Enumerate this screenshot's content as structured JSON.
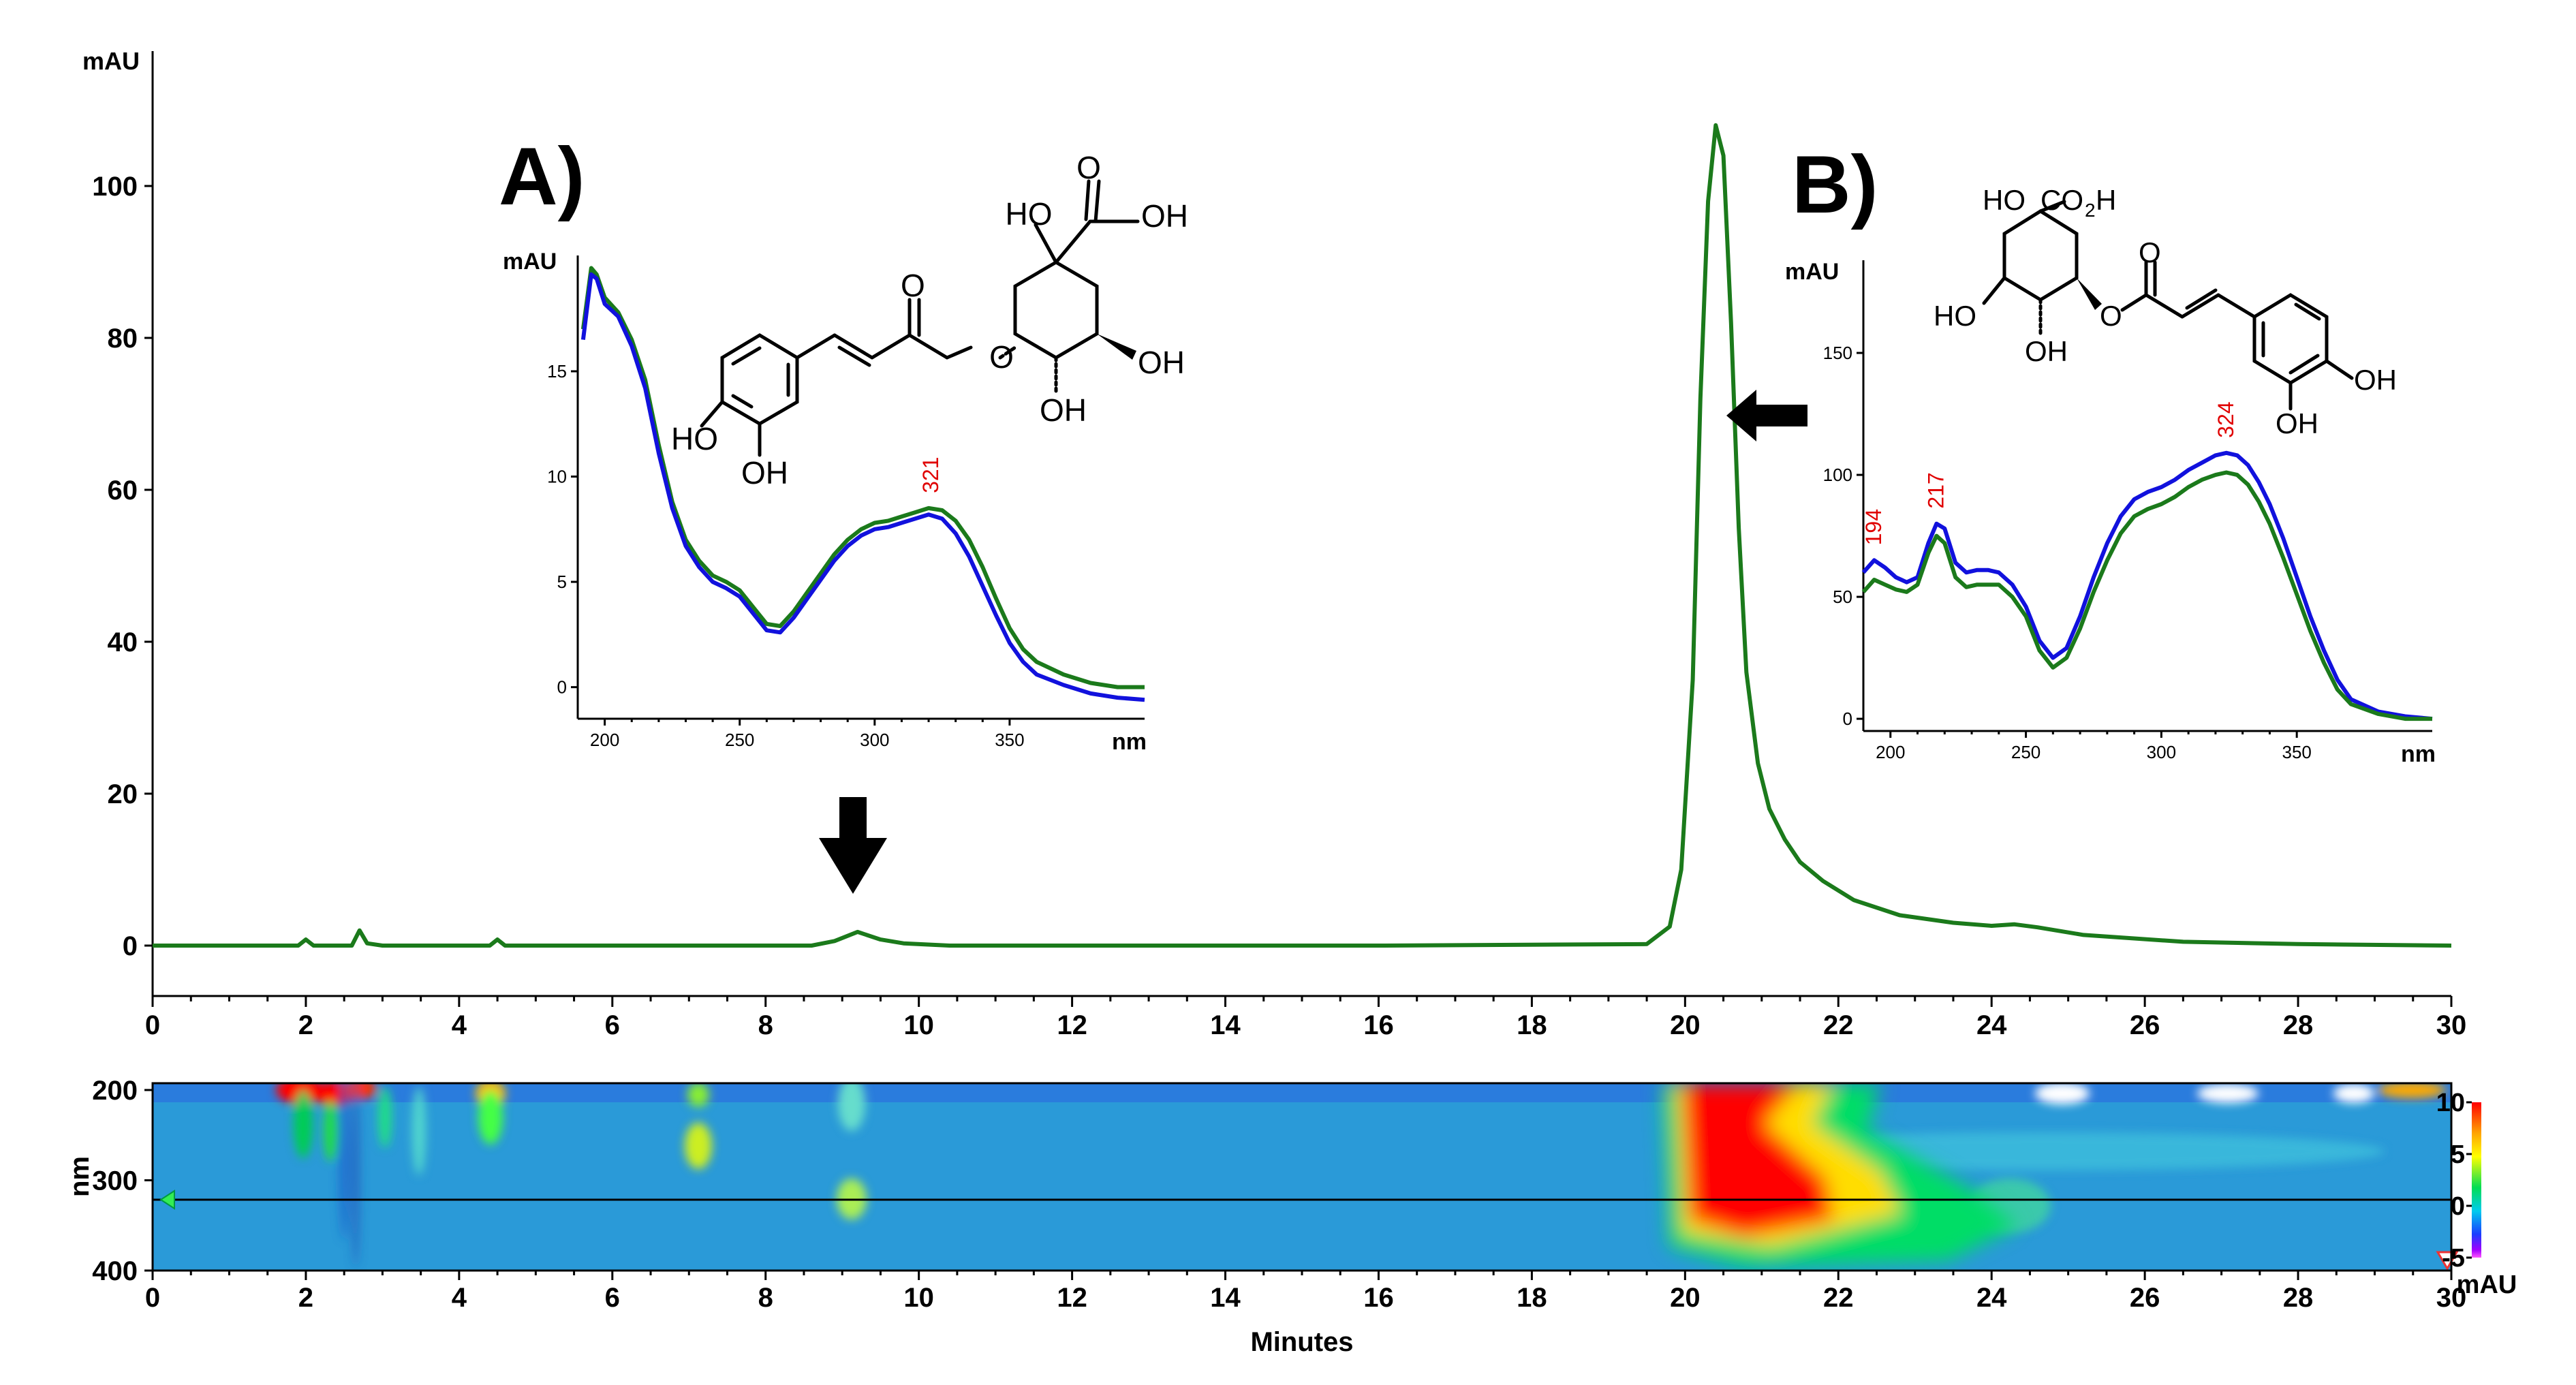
{
  "chart_data": [
    {
      "id": "chromatogram",
      "type": "line",
      "ylabel": "mAU",
      "xlabel": "",
      "xlim": [
        0,
        30
      ],
      "ylim": [
        -7,
        118
      ],
      "x_ticks": [
        "0",
        "2",
        "4",
        "6",
        "8",
        "10",
        "12",
        "14",
        "16",
        "18",
        "20",
        "22",
        "24",
        "26",
        "28",
        "30"
      ],
      "y_ticks": [
        "0",
        "20",
        "40",
        "60",
        "80",
        "100"
      ],
      "color": "#1b7a1b",
      "series": [
        {
          "name": "chromatogram",
          "x": [
            0,
            1.9,
            2.0,
            2.1,
            2.6,
            2.7,
            2.8,
            3.0,
            4.4,
            4.5,
            4.6,
            8.6,
            8.9,
            9.2,
            9.5,
            9.8,
            10.4,
            12,
            16,
            19.5,
            19.8,
            19.95,
            20.1,
            20.2,
            20.3,
            20.4,
            20.5,
            20.6,
            20.7,
            20.8,
            20.95,
            21.1,
            21.3,
            21.5,
            21.8,
            22.2,
            22.8,
            23.5,
            24.0,
            24.3,
            24.6,
            25.2,
            26.5,
            28,
            30
          ],
          "values": [
            0,
            0,
            0.8,
            0,
            0,
            2.0,
            0.3,
            0,
            0,
            0.8,
            0,
            0,
            0.6,
            1.8,
            0.8,
            0.3,
            0,
            0,
            0,
            0.2,
            2.5,
            10,
            35,
            72,
            98,
            108,
            104,
            82,
            55,
            36,
            24,
            18,
            14,
            11,
            8.5,
            6,
            4,
            3,
            2.6,
            2.8,
            2.4,
            1.4,
            0.5,
            0.2,
            0
          ]
        }
      ],
      "annotations": [
        {
          "type": "arrow",
          "x": 9.2,
          "direction": "down"
        },
        {
          "type": "arrow",
          "x": 21.5,
          "direction": "left"
        }
      ]
    },
    {
      "id": "inset-a",
      "type": "line",
      "panel_label": "A)",
      "ylabel": "mAU",
      "xlabel": "nm",
      "xlim": [
        190,
        400
      ],
      "ylim": [
        -1.5,
        20.5
      ],
      "x_ticks": [
        "200",
        "250",
        "300",
        "350"
      ],
      "y_ticks": [
        "0",
        "5",
        "10",
        "15"
      ],
      "peak_labels": [
        {
          "x": 321,
          "text": "321"
        }
      ],
      "series": [
        {
          "name": "green",
          "color": "#1b7a1b",
          "x": [
            192,
            195,
            197,
            200,
            205,
            210,
            215,
            220,
            225,
            230,
            235,
            240,
            245,
            250,
            255,
            260,
            265,
            270,
            275,
            280,
            285,
            290,
            295,
            300,
            305,
            310,
            315,
            320,
            325,
            330,
            335,
            340,
            345,
            350,
            355,
            360,
            370,
            380,
            390,
            400
          ],
          "values": [
            17,
            19.9,
            19.6,
            18.5,
            17.8,
            16.5,
            14.6,
            11.5,
            8.8,
            7.0,
            6.0,
            5.3,
            5.0,
            4.6,
            3.8,
            3.0,
            2.9,
            3.6,
            4.5,
            5.4,
            6.3,
            7.0,
            7.5,
            7.8,
            7.9,
            8.1,
            8.3,
            8.5,
            8.4,
            7.9,
            7.0,
            5.7,
            4.2,
            2.8,
            1.8,
            1.2,
            0.6,
            0.2,
            0,
            0
          ]
        },
        {
          "name": "blue",
          "color": "#1111dd",
          "x": [
            192,
            195,
            197,
            200,
            205,
            210,
            215,
            220,
            225,
            230,
            235,
            240,
            245,
            250,
            255,
            260,
            265,
            270,
            275,
            280,
            285,
            290,
            295,
            300,
            305,
            310,
            315,
            320,
            325,
            330,
            335,
            340,
            345,
            350,
            355,
            360,
            370,
            380,
            390,
            400
          ],
          "values": [
            16.5,
            19.6,
            19.4,
            18.2,
            17.6,
            16.2,
            14.2,
            11.1,
            8.5,
            6.7,
            5.7,
            5.0,
            4.7,
            4.3,
            3.5,
            2.7,
            2.6,
            3.3,
            4.2,
            5.1,
            6.0,
            6.7,
            7.2,
            7.5,
            7.6,
            7.8,
            8.0,
            8.2,
            8.0,
            7.3,
            6.2,
            4.8,
            3.4,
            2.1,
            1.2,
            0.6,
            0.1,
            -0.3,
            -0.5,
            -0.6
          ]
        }
      ]
    },
    {
      "id": "inset-b",
      "type": "line",
      "panel_label": "B)",
      "ylabel": "mAU",
      "xlabel": "nm",
      "xlim": [
        190,
        400
      ],
      "ylim": [
        -5,
        188
      ],
      "x_ticks": [
        "200",
        "250",
        "300",
        "350"
      ],
      "y_ticks": [
        "0",
        "50",
        "100",
        "150"
      ],
      "peak_labels": [
        {
          "x": 194,
          "text": "194"
        },
        {
          "x": 217,
          "text": "217"
        },
        {
          "x": 324,
          "text": "324"
        }
      ],
      "series": [
        {
          "name": "blue",
          "color": "#1111dd",
          "x": [
            190,
            194,
            198,
            202,
            206,
            210,
            214,
            217,
            220,
            224,
            228,
            232,
            236,
            240,
            245,
            250,
            255,
            260,
            265,
            270,
            275,
            280,
            285,
            290,
            295,
            300,
            305,
            310,
            315,
            320,
            324,
            328,
            332,
            336,
            340,
            345,
            350,
            355,
            360,
            365,
            370,
            380,
            390,
            400
          ],
          "values": [
            60,
            65,
            62,
            58,
            56,
            58,
            72,
            80,
            78,
            64,
            60,
            61,
            61,
            60,
            55,
            46,
            32,
            25,
            29,
            42,
            58,
            72,
            83,
            90,
            93,
            95,
            98,
            102,
            105,
            108,
            109,
            108,
            104,
            97,
            88,
            74,
            58,
            42,
            28,
            16,
            8,
            3,
            1,
            0
          ]
        },
        {
          "name": "green",
          "color": "#1b7a1b",
          "x": [
            190,
            194,
            198,
            202,
            206,
            210,
            214,
            217,
            220,
            224,
            228,
            232,
            236,
            240,
            245,
            250,
            255,
            260,
            265,
            270,
            275,
            280,
            285,
            290,
            295,
            300,
            305,
            310,
            315,
            320,
            324,
            328,
            332,
            336,
            340,
            345,
            350,
            355,
            360,
            365,
            370,
            380,
            390,
            400
          ],
          "values": [
            52,
            57,
            55,
            53,
            52,
            55,
            68,
            75,
            72,
            58,
            54,
            55,
            55,
            55,
            50,
            42,
            28,
            21,
            25,
            37,
            52,
            65,
            76,
            83,
            86,
            88,
            91,
            95,
            98,
            100,
            101,
            100,
            96,
            89,
            80,
            66,
            51,
            36,
            23,
            12,
            6,
            2,
            0,
            0
          ]
        }
      ]
    },
    {
      "id": "contour",
      "type": "heatmap",
      "xlabel": "Minutes",
      "ylabel": "nm",
      "xlim": [
        0,
        30
      ],
      "ylim": [
        200,
        400
      ],
      "x_ticks": [
        "0",
        "2",
        "4",
        "6",
        "8",
        "10",
        "12",
        "14",
        "16",
        "18",
        "20",
        "22",
        "24",
        "26",
        "28",
        "30"
      ],
      "y_ticks": [
        "200",
        "300",
        "400"
      ],
      "cursor_wavelength": 320,
      "colorbar": {
        "label": "mAU",
        "ticks": [
          "10",
          "5",
          "0",
          "-5"
        ],
        "range": [
          -5,
          10
        ]
      }
    }
  ],
  "structures": {
    "a": {
      "labels": [
        "HO",
        "O",
        "OH",
        "O",
        "OH",
        "OH",
        "HO",
        "OH"
      ]
    },
    "b": {
      "labels": [
        "HO",
        "CO",
        "2",
        "H",
        "O",
        "O",
        "HO",
        "OH",
        "OH",
        "OH"
      ]
    }
  }
}
